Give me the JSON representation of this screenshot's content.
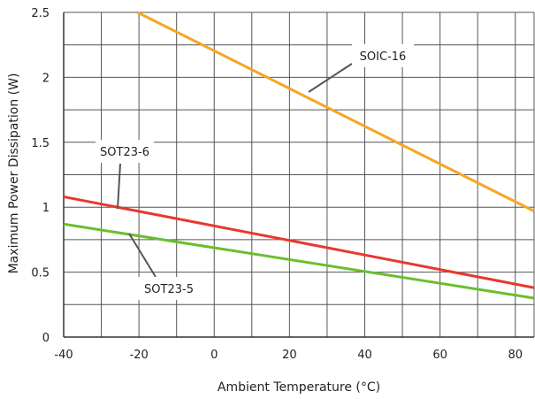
{
  "chart_data": {
    "type": "line",
    "xlabel": "Ambient Temperature (°C)",
    "ylabel": "Maximum Power Dissipation (W)",
    "xlim": [
      -40,
      85
    ],
    "ylim": [
      0,
      2.5
    ],
    "x_ticks": [
      -40,
      -20,
      0,
      20,
      40,
      60,
      80
    ],
    "x_tick_labels": [
      "-40",
      "-20",
      "0",
      "20",
      "40",
      "60",
      "80"
    ],
    "y_ticks": [
      0,
      0.5,
      1,
      1.5,
      2,
      2.5
    ],
    "y_tick_labels": [
      "0",
      "0.5",
      "1",
      "1.5",
      "2",
      "2.5"
    ],
    "grid": true,
    "minor_grid_step_x": 10,
    "minor_grid_step_y": 0.25,
    "series": [
      {
        "name": "SOIC-16",
        "color": "#F5A623",
        "x": [
          -20.4,
          85
        ],
        "y": [
          2.5,
          0.97
        ]
      },
      {
        "name": "SOT23-6",
        "color": "#E8382D",
        "x": [
          -40,
          85
        ],
        "y": [
          1.08,
          0.38
        ]
      },
      {
        "name": "SOT23-5",
        "color": "#6CBE2D",
        "x": [
          -40,
          85
        ],
        "y": [
          0.87,
          0.3
        ]
      }
    ],
    "annotations": [
      {
        "text": "SOIC-16",
        "series": 0
      },
      {
        "text": "SOT23-6",
        "series": 1
      },
      {
        "text": "SOT23-5",
        "series": 2
      }
    ]
  }
}
